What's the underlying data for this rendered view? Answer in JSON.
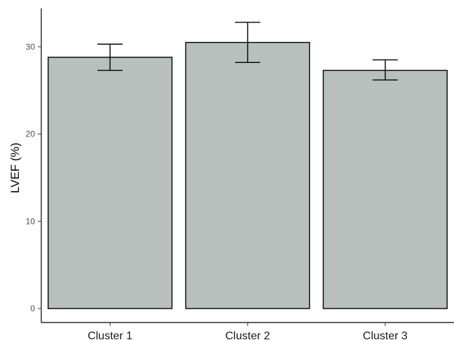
{
  "chart_data": {
    "type": "bar",
    "title": "",
    "xlabel": "",
    "ylabel": "LVEF (%)",
    "categories": [
      "Cluster 1",
      "Cluster 2",
      "Cluster 3"
    ],
    "values": [
      28.8,
      30.5,
      27.3
    ],
    "error_lower": [
      27.3,
      28.2,
      26.2
    ],
    "error_upper": [
      30.3,
      32.8,
      28.5
    ],
    "ylim": [
      -1.6,
      34.4
    ],
    "yticks": [
      0,
      10,
      20,
      30
    ],
    "ytick_labels": [
      "0",
      "10",
      "20",
      "30"
    ],
    "grid": false,
    "bar_color": "#b8bfbd"
  }
}
